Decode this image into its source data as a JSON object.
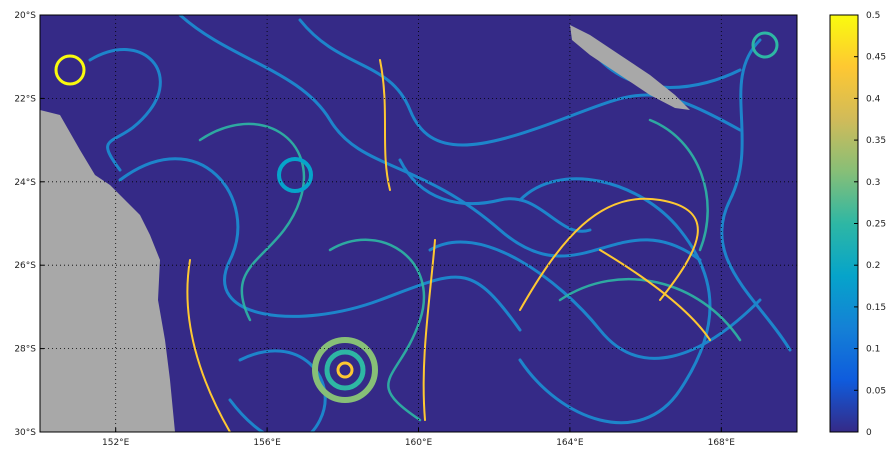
{
  "map": {
    "lon_range": [
      150,
      170
    ],
    "lat_range": [
      -30,
      -20
    ],
    "lon_ticks": [
      {
        "value": 152,
        "label": "152°E"
      },
      {
        "value": 156,
        "label": "156°E"
      },
      {
        "value": 160,
        "label": "160°E"
      },
      {
        "value": 164,
        "label": "164°E"
      },
      {
        "value": 168,
        "label": "168°E"
      }
    ],
    "lat_ticks": [
      {
        "value": -20,
        "label": "20°S"
      },
      {
        "value": -22,
        "label": "22°S"
      },
      {
        "value": -24,
        "label": "24°S"
      },
      {
        "value": -26,
        "label": "26°S"
      },
      {
        "value": -28,
        "label": "28°S"
      },
      {
        "value": -30,
        "label": "30°S"
      }
    ],
    "grid": true,
    "colorbar": {
      "lim": [
        0,
        0.5
      ],
      "ticks": [
        0,
        0.05,
        0.1,
        0.15,
        0.2,
        0.25,
        0.3,
        0.35,
        0.4,
        0.45,
        0.5
      ],
      "colors": [
        "#352a87",
        "#0f5cdd",
        "#1481d6",
        "#06a4ca",
        "#2eb7a4",
        "#87bf77",
        "#d1bb59",
        "#fec832",
        "#f9fb0e"
      ]
    }
  }
}
